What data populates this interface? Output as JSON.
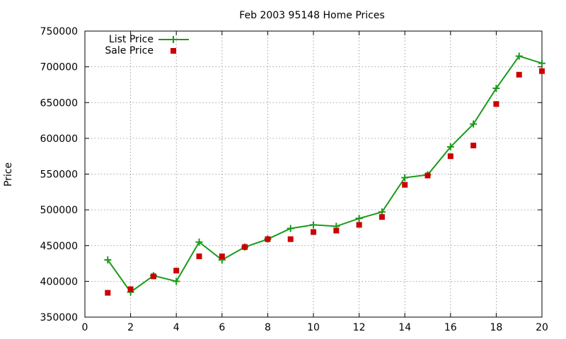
{
  "chart_data": {
    "type": "line",
    "title": "Feb 2003 95148 Home Prices",
    "xlabel": "",
    "ylabel": "Price",
    "xlim": [
      0,
      20
    ],
    "ylim": [
      350000,
      750000
    ],
    "xticks": [
      0,
      2,
      4,
      6,
      8,
      10,
      12,
      14,
      16,
      18,
      20
    ],
    "yticks": [
      350000,
      400000,
      450000,
      500000,
      550000,
      600000,
      650000,
      700000,
      750000
    ],
    "grid": true,
    "legend_position": "top-left",
    "series": [
      {
        "name": "List Price",
        "style": "line+plus",
        "color": "#1a9a1a",
        "x": [
          1,
          2,
          3,
          4,
          5,
          6,
          7,
          8,
          9,
          10,
          11,
          12,
          13,
          14,
          15,
          16,
          17,
          18,
          19,
          20
        ],
        "y": [
          430000,
          385000,
          408000,
          400000,
          455000,
          430000,
          448000,
          459000,
          474000,
          479000,
          477000,
          488000,
          497000,
          545000,
          549000,
          588000,
          620000,
          670000,
          715000,
          705000
        ]
      },
      {
        "name": "Sale Price",
        "style": "square-points",
        "color": "#cc0000",
        "x": [
          1,
          2,
          3,
          4,
          5,
          6,
          7,
          8,
          9,
          10,
          11,
          12,
          13,
          14,
          15,
          16,
          17,
          18,
          19,
          20
        ],
        "y": [
          384000,
          389000,
          407000,
          415000,
          435000,
          435000,
          448000,
          459000,
          459000,
          469000,
          471000,
          479000,
          490000,
          535000,
          548000,
          575000,
          590000,
          648000,
          689000,
          694000
        ]
      }
    ]
  }
}
